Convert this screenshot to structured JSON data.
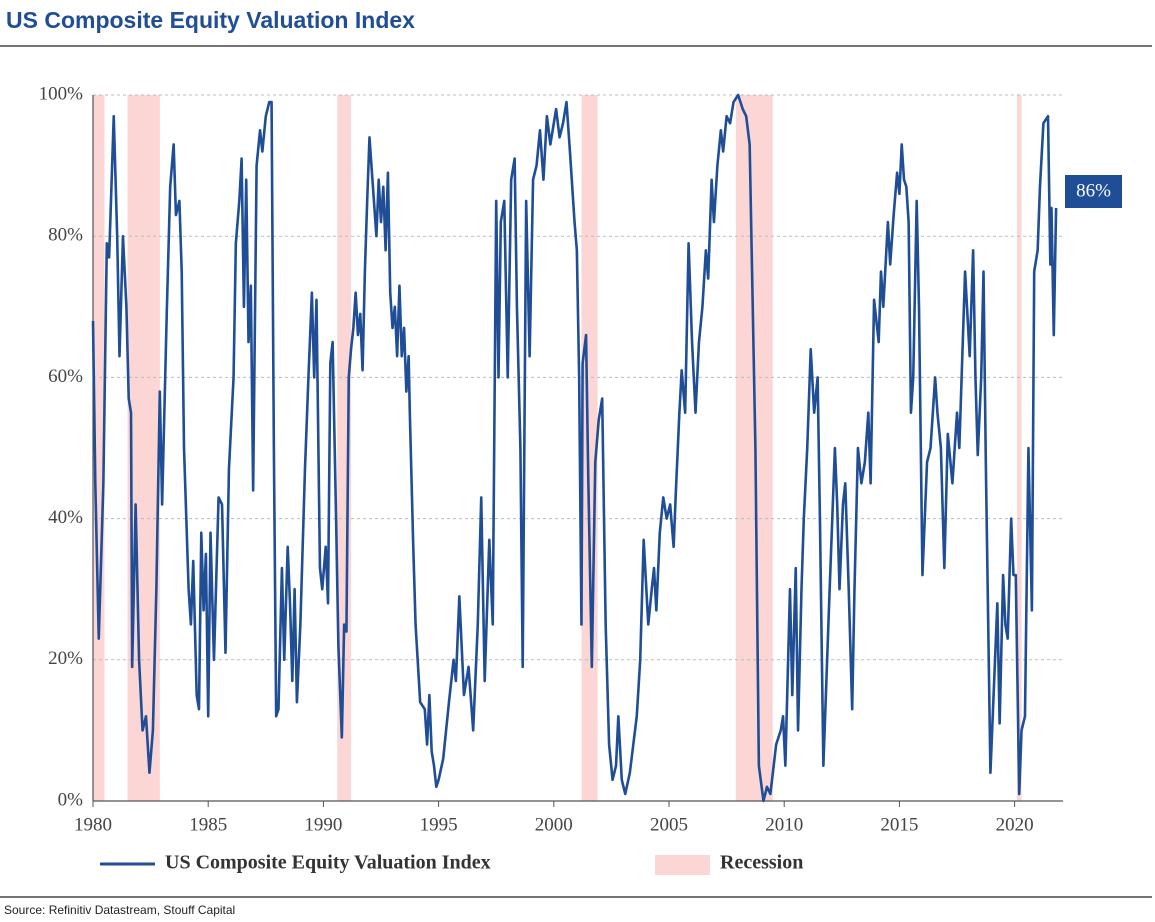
{
  "chart_data": {
    "type": "line",
    "title": "US Composite Equity Valuation Index",
    "source": "Source: Refinitiv Datastream, Stouff Capital",
    "annotation": "86%",
    "x": [
      1980.0,
      1980.1,
      1980.25,
      1980.45,
      1980.6,
      1980.7,
      1980.9,
      1981.05,
      1981.15,
      1981.3,
      1981.45,
      1981.55,
      1981.65,
      1981.7,
      1981.85,
      1982.0,
      1982.15,
      1982.3,
      1982.45,
      1982.6,
      1982.75,
      1982.9,
      1983.0,
      1983.2,
      1983.35,
      1983.5,
      1983.6,
      1983.75,
      1983.85,
      1983.95,
      1984.15,
      1984.25,
      1984.35,
      1984.5,
      1984.6,
      1984.7,
      1984.8,
      1984.9,
      1985.0,
      1985.1,
      1985.25,
      1985.45,
      1985.6,
      1985.75,
      1985.9,
      1986.1,
      1986.2,
      1986.35,
      1986.45,
      1986.55,
      1986.65,
      1986.75,
      1986.85,
      1986.95,
      1987.1,
      1987.25,
      1987.35,
      1987.5,
      1987.65,
      1987.75,
      1987.85,
      1987.95,
      1988.05,
      1988.2,
      1988.3,
      1988.45,
      1988.55,
      1988.65,
      1988.75,
      1988.85,
      1989.0,
      1989.2,
      1989.35,
      1989.5,
      1989.6,
      1989.7,
      1989.85,
      1989.95,
      1990.1,
      1990.2,
      1990.3,
      1990.4,
      1990.55,
      1990.65,
      1990.8,
      1990.9,
      1991.0,
      1991.1,
      1991.2,
      1991.3,
      1991.4,
      1991.5,
      1991.6,
      1991.7,
      1991.8,
      1991.9,
      1992.0,
      1992.15,
      1992.3,
      1992.4,
      1992.5,
      1992.6,
      1992.7,
      1992.8,
      1992.9,
      1993.0,
      1993.1,
      1993.2,
      1993.3,
      1993.4,
      1993.5,
      1993.6,
      1993.7,
      1993.75,
      1993.9,
      1994.0,
      1994.2,
      1994.4,
      1994.5,
      1994.6,
      1994.7,
      1994.8,
      1994.9,
      1995.0,
      1995.2,
      1995.45,
      1995.65,
      1995.75,
      1995.9,
      1996.1,
      1996.3,
      1996.5,
      1996.7,
      1996.85,
      1997.0,
      1997.2,
      1997.35,
      1997.5,
      1997.6,
      1997.7,
      1997.85,
      1998.0,
      1998.15,
      1998.3,
      1998.4,
      1998.55,
      1998.65,
      1998.8,
      1998.95,
      1999.1,
      1999.25,
      1999.4,
      1999.55,
      1999.7,
      1999.85,
      2000.1,
      2000.25,
      2000.4,
      2000.55,
      2000.7,
      2000.9,
      2001.0,
      2001.1,
      2001.2,
      2001.25,
      2001.4,
      2001.5,
      2001.65,
      2001.8,
      2001.95,
      2002.1,
      2002.25,
      2002.4,
      2002.55,
      2002.7,
      2002.8,
      2002.95,
      2003.1,
      2003.3,
      2003.45,
      2003.6,
      2003.75,
      2003.9,
      2004.1,
      2004.25,
      2004.35,
      2004.45,
      2004.6,
      2004.75,
      2004.9,
      2005.05,
      2005.2,
      2005.3,
      2005.45,
      2005.55,
      2005.7,
      2005.85,
      2006.0,
      2006.15,
      2006.3,
      2006.45,
      2006.6,
      2006.7,
      2006.85,
      2006.95,
      2007.1,
      2007.25,
      2007.35,
      2007.5,
      2007.65,
      2007.8,
      2008.0,
      2008.2,
      2008.35,
      2008.5,
      2008.75,
      2008.9,
      2009.1,
      2009.25,
      2009.4,
      2009.65,
      2009.85,
      2009.95,
      2010.05,
      2010.25,
      2010.35,
      2010.5,
      2010.6,
      2010.75,
      2010.85,
      2011.0,
      2011.15,
      2011.3,
      2011.45,
      2011.55,
      2011.7,
      2011.95,
      2012.2,
      2012.3,
      2012.4,
      2012.55,
      2012.65,
      2012.8,
      2012.95,
      2013.05,
      2013.2,
      2013.35,
      2013.5,
      2013.65,
      2013.75,
      2013.9,
      2014.1,
      2014.2,
      2014.3,
      2014.5,
      2014.6,
      2014.75,
      2014.9,
      2015.0,
      2015.1,
      2015.2,
      2015.3,
      2015.4,
      2015.5,
      2015.6,
      2015.75,
      2015.85,
      2016.0,
      2016.2,
      2016.35,
      2016.55,
      2016.65,
      2016.8,
      2016.95,
      2017.1,
      2017.3,
      2017.5,
      2017.6,
      2017.75,
      2017.85,
      2018.05,
      2018.2,
      2018.3,
      2018.4,
      2018.55,
      2018.65,
      2018.75,
      2018.95,
      2019.15,
      2019.25,
      2019.35,
      2019.5,
      2019.6,
      2019.7,
      2019.85,
      2019.95,
      2020.05,
      2020.2,
      2020.3,
      2020.45,
      2020.6,
      2020.75,
      2020.85,
      2021.0,
      2021.1,
      2021.25,
      2021.45,
      2021.55,
      2021.6,
      2021.7,
      2021.8
    ],
    "series": [
      {
        "name": "US Composite Equity Valuation Index",
        "color": "#1f4e96",
        "values": [
          68,
          45,
          23,
          45,
          79,
          77,
          97,
          80,
          63,
          80,
          70,
          57,
          55,
          19,
          42,
          20,
          10,
          12,
          4,
          10,
          30,
          58,
          42,
          69,
          87,
          93,
          83,
          85,
          75,
          50,
          30,
          25,
          34,
          15,
          13,
          38,
          27,
          35,
          12,
          38,
          20,
          43,
          42,
          21,
          47,
          60,
          79,
          85,
          91,
          70,
          88,
          65,
          73,
          44,
          90,
          95,
          92,
          97,
          99,
          99,
          50,
          12,
          13,
          33,
          20,
          36,
          28,
          17,
          30,
          14,
          25,
          47,
          60,
          72,
          60,
          71,
          33,
          30,
          36,
          28,
          62,
          65,
          40,
          22,
          9,
          25,
          24,
          60,
          64,
          67,
          72,
          66,
          69,
          61,
          75,
          85,
          94,
          87,
          80,
          88,
          82,
          87,
          78,
          89,
          72,
          67,
          70,
          63,
          73,
          63,
          67,
          58,
          63,
          55,
          36,
          25,
          14,
          13,
          8,
          15,
          7,
          5,
          2,
          3,
          6,
          14,
          20,
          17,
          29,
          15,
          19,
          10,
          25,
          43,
          17,
          37,
          25,
          85,
          60,
          82,
          85,
          60,
          88,
          91,
          70,
          50,
          19,
          85,
          63,
          88,
          90,
          95,
          88,
          97,
          93,
          98,
          94,
          96,
          99,
          92,
          82,
          78,
          60,
          25,
          62,
          66,
          45,
          19,
          48,
          54,
          57,
          25,
          8,
          3,
          5,
          12,
          3,
          1,
          4,
          8,
          12,
          20,
          37,
          25,
          30,
          33,
          27,
          38,
          43,
          40,
          42,
          36,
          44,
          55,
          61,
          55,
          79,
          65,
          55,
          65,
          70,
          78,
          74,
          88,
          82,
          90,
          95,
          92,
          97,
          96,
          99,
          100,
          98,
          97,
          93,
          50,
          5,
          0,
          2,
          1,
          8,
          10,
          12,
          5,
          30,
          15,
          33,
          10,
          30,
          40,
          50,
          64,
          55,
          60,
          40,
          5,
          28,
          50,
          42,
          30,
          42,
          45,
          30,
          13,
          30,
          50,
          45,
          48,
          55,
          45,
          71,
          65,
          75,
          70,
          82,
          76,
          83,
          89,
          86,
          93,
          88,
          87,
          82,
          55,
          60,
          85,
          70,
          32,
          48,
          50,
          60,
          55,
          50,
          33,
          52,
          45,
          55,
          50,
          65,
          75,
          63,
          78,
          60,
          49,
          60,
          75,
          48,
          4,
          20,
          28,
          11,
          32,
          25,
          23,
          40,
          32,
          32,
          1,
          10,
          12,
          50,
          27,
          75,
          78,
          87,
          96,
          97,
          76,
          84,
          66,
          84
        ]
      }
    ],
    "recessions": {
      "name": "Recession",
      "color": "#fcd5d5",
      "spans": [
        [
          1980.0,
          1980.5
        ],
        [
          1981.5,
          1982.9
        ],
        [
          1990.6,
          1991.2
        ],
        [
          2001.2,
          2001.9
        ],
        [
          2007.9,
          2009.5
        ],
        [
          2020.1,
          2020.3
        ]
      ]
    },
    "xlim": [
      1980,
      2022.1
    ],
    "xticks": [
      1980,
      1985,
      1990,
      1995,
      2000,
      2005,
      2010,
      2015,
      2020
    ],
    "ylim": [
      0,
      100
    ],
    "yticks": [
      {
        "value": 0,
        "label": "0%"
      },
      {
        "value": 20,
        "label": "20%"
      },
      {
        "value": 40,
        "label": "40%"
      },
      {
        "value": 60,
        "label": "60%"
      },
      {
        "value": 80,
        "label": "80%"
      },
      {
        "value": 100,
        "label": "100%"
      }
    ],
    "grid": true
  }
}
